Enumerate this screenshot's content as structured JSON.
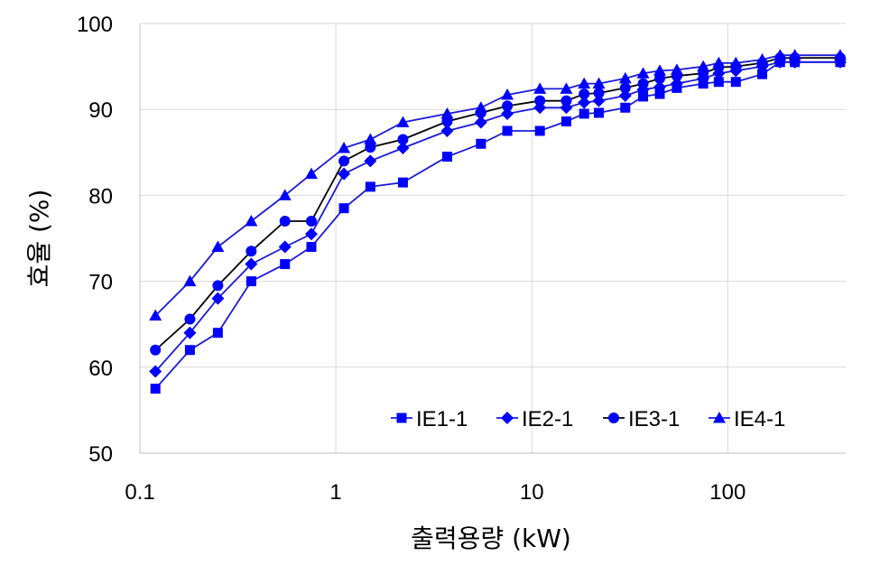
{
  "chart_data": {
    "type": "line",
    "xscale": "log",
    "xlim": [
      0.1,
      400
    ],
    "ylim": [
      50,
      100
    ],
    "x_ticks": [
      0.1,
      1,
      10,
      100
    ],
    "x_tick_labels": [
      "0.1",
      "1",
      "10",
      "100"
    ],
    "y_ticks": [
      50,
      60,
      70,
      80,
      90,
      100
    ],
    "y_tick_labels": [
      "50",
      "60",
      "70",
      "80",
      "90",
      "100"
    ],
    "xlabel": "출력용량 (kW)",
    "ylabel": "효율 (%)",
    "grid": true,
    "legend_position": "bottom-right",
    "x": [
      0.12,
      0.18,
      0.25,
      0.37,
      0.55,
      0.75,
      1.1,
      1.5,
      2.2,
      3.7,
      5.5,
      7.5,
      11,
      15,
      18.5,
      22,
      30,
      37,
      45,
      55,
      75,
      90,
      110,
      150,
      185,
      220,
      375
    ],
    "series": [
      {
        "name": "IE1-1",
        "marker": "square",
        "line_color": "#1a1adb",
        "marker_color": "#0000ff",
        "values": [
          57.5,
          62,
          64,
          70,
          72,
          74,
          78.5,
          81,
          81.5,
          84.5,
          86,
          87.5,
          87.5,
          88.6,
          89.5,
          89.6,
          90.2,
          91.5,
          91.8,
          92.5,
          93,
          93.2,
          93.2,
          94.1,
          95.5,
          95.5,
          95.5
        ]
      },
      {
        "name": "IE2-1",
        "marker": "diamond",
        "line_color": "#1a1adb",
        "marker_color": "#0000ff",
        "values": [
          59.5,
          64,
          68,
          72,
          74,
          75.5,
          82.5,
          84,
          85.5,
          87.5,
          88.5,
          89.5,
          90.2,
          90.2,
          90.8,
          91,
          91.6,
          92.3,
          92.6,
          93,
          93.6,
          94.2,
          94.5,
          95,
          95.5,
          95.5,
          95.5
        ]
      },
      {
        "name": "IE3-1",
        "marker": "circle",
        "line_color": "#000000",
        "marker_color": "#0000ff",
        "values": [
          62,
          65.6,
          69.5,
          73.5,
          77,
          77,
          84,
          85.6,
          86.5,
          88.6,
          89.6,
          90.4,
          91,
          91,
          91.8,
          91.9,
          92.5,
          93,
          93.6,
          93.9,
          94.2,
          94.9,
          95,
          95.4,
          96,
          96,
          96
        ]
      },
      {
        "name": "IE4-1",
        "marker": "triangle",
        "line_color": "#1a1adb",
        "marker_color": "#0000ff",
        "values": [
          66,
          70,
          74,
          77,
          80,
          82.5,
          85.5,
          86.5,
          88.5,
          89.5,
          90.2,
          91.7,
          92.4,
          92.4,
          93,
          93,
          93.6,
          94.2,
          94.5,
          94.6,
          95,
          95.4,
          95.4,
          95.8,
          96.3,
          96.3,
          96.3
        ]
      }
    ]
  }
}
